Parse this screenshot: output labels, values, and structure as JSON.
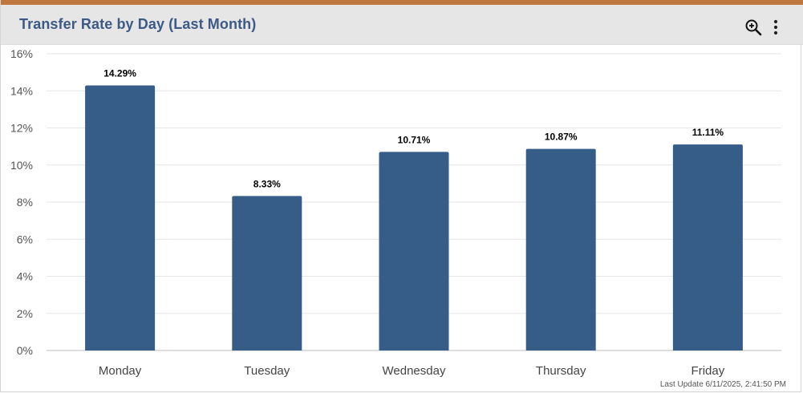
{
  "header": {
    "title": "Transfer Rate by Day (Last Month)",
    "zoom_icon": "zoom-in-icon",
    "menu_icon": "vertical-dots-icon"
  },
  "footer": {
    "last_update": "Last Update 6/11/2025, 2:41:50 PM"
  },
  "colors": {
    "accent": "#c0773e",
    "bar": "#365c88",
    "title": "#3c5a83",
    "header_bg": "#e7e6e7"
  },
  "chart_data": {
    "type": "bar",
    "categories": [
      "Monday",
      "Tuesday",
      "Wednesday",
      "Thursday",
      "Friday"
    ],
    "values": [
      14.29,
      8.33,
      10.71,
      10.87,
      11.11
    ],
    "data_labels": [
      "14.29%",
      "8.33%",
      "10.71%",
      "10.87%",
      "11.11%"
    ],
    "ylim": [
      0,
      16
    ],
    "yticks": [
      0,
      2,
      4,
      6,
      8,
      10,
      12,
      14,
      16
    ],
    "ytick_labels": [
      "0%",
      "2%",
      "4%",
      "6%",
      "8%",
      "10%",
      "12%",
      "14%",
      "16%"
    ],
    "grid": true,
    "xlabel": "",
    "ylabel": "",
    "legend": "none"
  }
}
